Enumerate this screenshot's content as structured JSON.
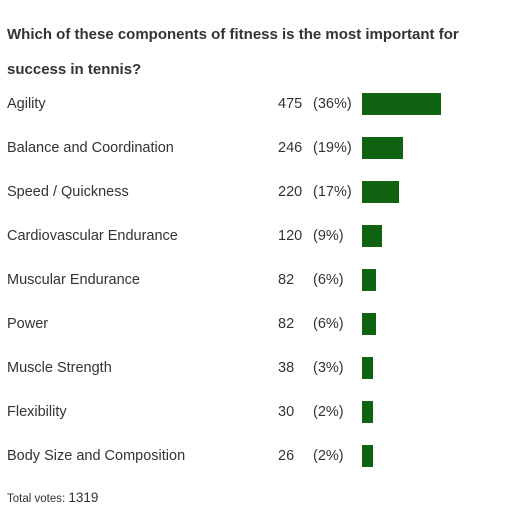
{
  "poll": {
    "question": "Which of these components of fitness is the most important for success in tennis?",
    "total_label": "Total votes:",
    "total_value": "1319"
  },
  "chart_data": {
    "type": "bar",
    "orientation": "horizontal",
    "title": "Which of these components of fitness is the most important for success in tennis?",
    "categories": [
      "Agility",
      "Balance and Coordination",
      "Speed / Quickness",
      "Cardiovascular Endurance",
      "Muscular Endurance",
      "Power",
      "Muscle Strength",
      "Flexibility",
      "Body Size and Composition"
    ],
    "values": [
      475,
      246,
      220,
      120,
      82,
      82,
      38,
      30,
      26
    ],
    "percent_labels": [
      "(36%)",
      "(19%)",
      "(17%)",
      "(9%)",
      "(6%)",
      "(6%)",
      "(3%)",
      "(2%)",
      "(2%)"
    ],
    "bar_color": "#106310",
    "grid": false
  }
}
